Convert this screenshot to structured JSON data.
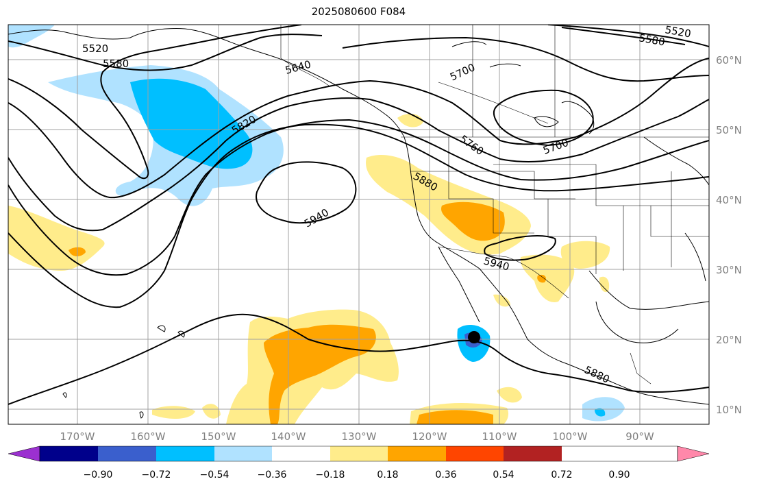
{
  "title": "2025080600 F084",
  "lon_ticks": [
    "170°W",
    "160°W",
    "150°W",
    "140°W",
    "130°W",
    "120°W",
    "110°W",
    "100°W",
    "90°W"
  ],
  "lat_ticks": [
    "60°N",
    "50°N",
    "40°N",
    "30°N",
    "20°N",
    "10°N"
  ],
  "colorbar": {
    "ticks": [
      "−0.90",
      "−0.72",
      "−0.54",
      "−0.36",
      "−0.18",
      "0.18",
      "0.36",
      "0.54",
      "0.72",
      "0.90"
    ],
    "colors": [
      "#9b30d0",
      "#00008b",
      "#3a5fcd",
      "#00bfff",
      "#b0e2ff",
      "#ffffff",
      "#ffec8b",
      "#ffa500",
      "#ff4500",
      "#b22222",
      "#ff88aa"
    ]
  },
  "contour_labels": [
    "5520",
    "5580",
    "5640",
    "5700",
    "5820",
    "5760",
    "5700",
    "5880",
    "5940",
    "5940",
    "5880",
    "5580",
    "5520"
  ],
  "colors": {
    "grid": "#a0a0a0",
    "coast": "#000000",
    "contour": "#000000"
  },
  "marker": "storm-center"
}
